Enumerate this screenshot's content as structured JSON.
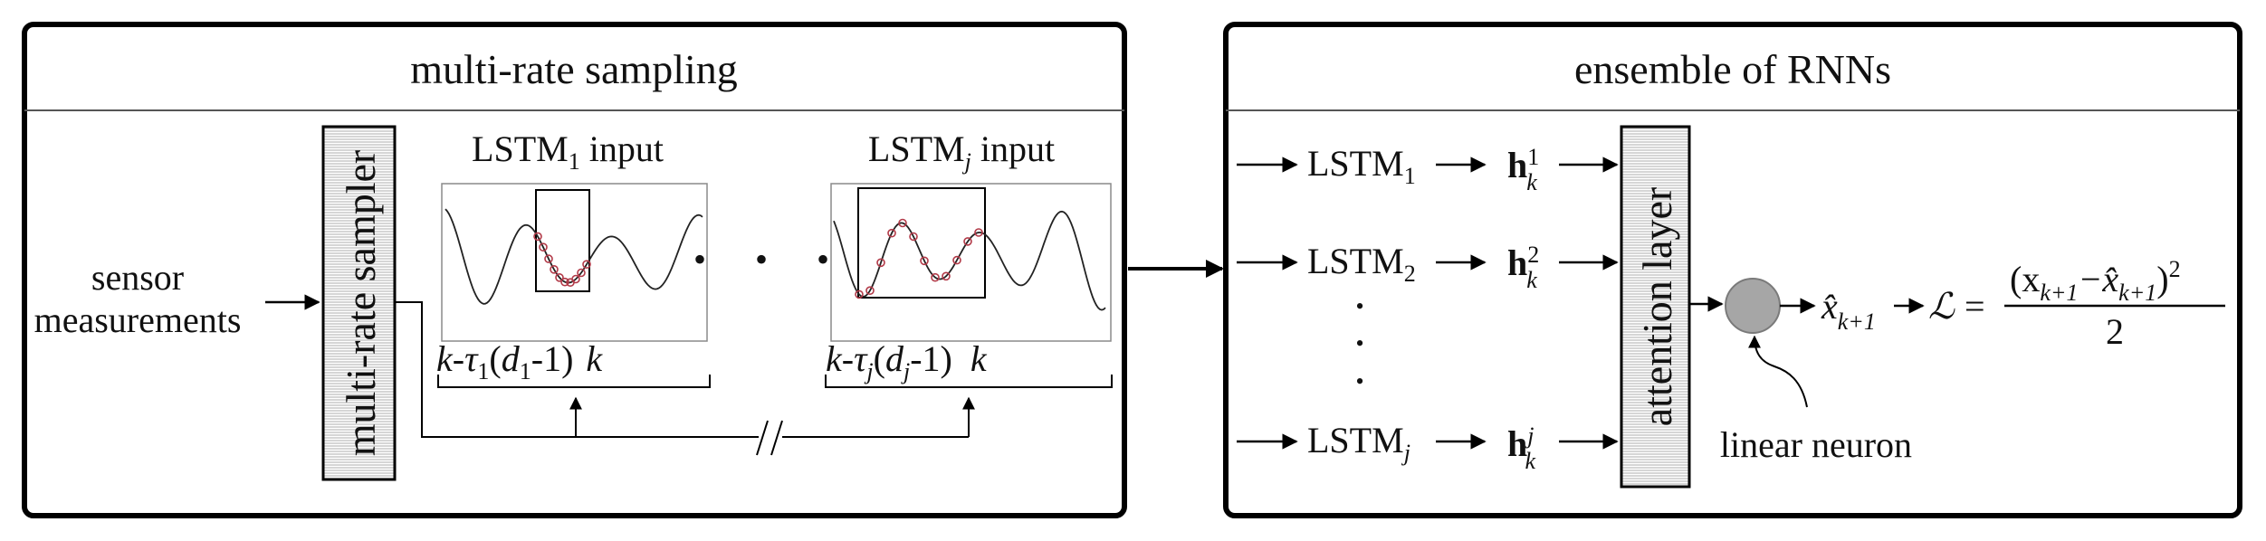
{
  "left_panel": {
    "title": "multi-rate sampling",
    "input_line1": "sensor",
    "input_line2": "measurements",
    "sampler_label": "multi-rate sampler",
    "window1": {
      "lstm": "LSTM",
      "sub": "1",
      "suffix": " input"
    },
    "window_j": {
      "lstm": "LSTM",
      "sub": "j",
      "suffix": " input"
    },
    "ellipsis": "• • •",
    "range1": {
      "k": "k",
      "dash": "-",
      "tau": "τ",
      "tau_sub": "1",
      "open": "(",
      "d": "d",
      "d_sub": "1",
      "close": "-1)",
      "k_end": "k"
    },
    "range_j": {
      "k": "k",
      "dash": "-",
      "tau": "τ",
      "tau_sub": "j",
      "open": "(",
      "d": "d",
      "d_sub": "j",
      "close": "-1)",
      "k_end": "k"
    },
    "break_mark": "//"
  },
  "right_panel": {
    "title": "ensemble of RNNs",
    "lstm_rows": [
      {
        "lstm": "LSTM",
        "sub": "1",
        "h": "h",
        "h_sup": "1",
        "h_sub": "k"
      },
      {
        "lstm": "LSTM",
        "sub": "2",
        "h": "h",
        "h_sup": "2",
        "h_sub": "k"
      },
      {
        "lstm": "LSTM",
        "sub": "j",
        "h": "h",
        "h_sup": "j",
        "h_sub": "k"
      }
    ],
    "vdots": "•",
    "attention_label": "attention layer",
    "neuron_label": "linear neuron",
    "output": {
      "x": "x̂",
      "sub": "k+1"
    },
    "loss": {
      "symbol": "ℒ",
      "eq": "=",
      "numerator": "(x",
      "num_sub1": "k+1",
      "minus": "−x̂",
      "num_sub2": "k+1",
      "close": ")",
      "sup": "2",
      "denominator": "2"
    }
  },
  "colors": {
    "border": "#000000",
    "stripe": "#d9d9d9",
    "sample": "#b23a48",
    "neuron": "#a6a6a6"
  }
}
